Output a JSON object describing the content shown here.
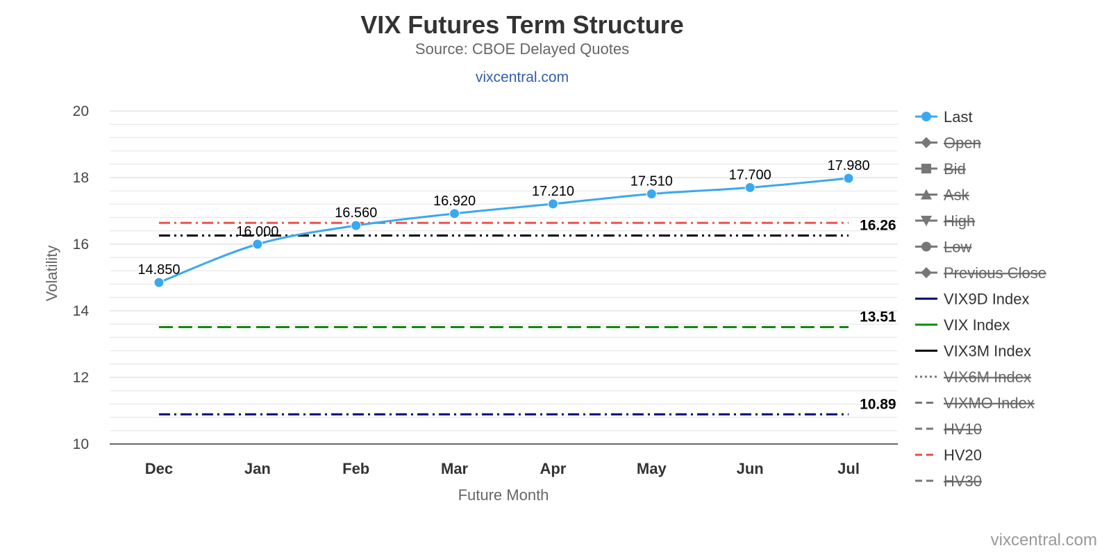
{
  "chart_data": {
    "type": "line",
    "title": "VIX Futures Term Structure",
    "subtitle": "Source: CBOE Delayed Quotes",
    "subtitle_link": "vixcentral.com",
    "xlabel": "Future Month",
    "ylabel": "Volatility",
    "ylim": [
      10,
      20
    ],
    "y_ticks": [
      "10",
      "12",
      "14",
      "16",
      "18",
      "20"
    ],
    "categories": [
      "Dec",
      "Jan",
      "Feb",
      "Mar",
      "Apr",
      "May",
      "Jun",
      "Jul"
    ],
    "series": [
      {
        "name": "Last",
        "values": [
          14.85,
          16.0,
          16.56,
          16.92,
          17.21,
          17.51,
          17.7,
          17.98
        ],
        "labels": [
          "14.850",
          "16.000",
          "16.560",
          "16.920",
          "17.210",
          "17.510",
          "17.700",
          "17.980"
        ],
        "color": "#3aa8f0"
      }
    ],
    "reference_lines": [
      {
        "name": "HV20",
        "value": 16.64,
        "color": "#f0524a",
        "style": "dashdot",
        "label": ""
      },
      {
        "name": "VIX3M Index",
        "value": 16.26,
        "color": "#000000",
        "style": "dashdotdot",
        "label": "16.26"
      },
      {
        "name": "VIX Index",
        "value": 13.51,
        "color": "#118811",
        "style": "longdash",
        "label": "13.51"
      },
      {
        "name": "VIX9D Index",
        "value": 10.89,
        "color": "#000080",
        "style": "dashdot",
        "label": "10.89"
      }
    ],
    "legend": {
      "position": "right",
      "items": [
        {
          "name": "Last",
          "symbol": "circle",
          "color": "#3aa8f0",
          "visible": true
        },
        {
          "name": "Open",
          "symbol": "diamond",
          "color": "#777777",
          "visible": false
        },
        {
          "name": "Bid",
          "symbol": "square",
          "color": "#777777",
          "visible": false
        },
        {
          "name": "Ask",
          "symbol": "triangle",
          "color": "#777777",
          "visible": false
        },
        {
          "name": "High",
          "symbol": "triangle-down",
          "color": "#777777",
          "visible": false
        },
        {
          "name": "Low",
          "symbol": "circle",
          "color": "#777777",
          "visible": false
        },
        {
          "name": "Previous Close",
          "symbol": "diamond",
          "color": "#777777",
          "visible": false
        },
        {
          "name": "VIX9D Index",
          "symbol": "line",
          "color": "#000080",
          "visible": true
        },
        {
          "name": "VIX Index",
          "symbol": "line",
          "color": "#118811",
          "visible": true
        },
        {
          "name": "VIX3M Index",
          "symbol": "line",
          "color": "#000000",
          "visible": true
        },
        {
          "name": "VIX6M Index",
          "symbol": "dotted",
          "color": "#777777",
          "visible": false
        },
        {
          "name": "VIXMO Index",
          "symbol": "dash",
          "color": "#777777",
          "visible": false
        },
        {
          "name": "HV10",
          "symbol": "dash",
          "color": "#777777",
          "visible": false
        },
        {
          "name": "HV20",
          "symbol": "dash",
          "color": "#f0524a",
          "visible": true
        },
        {
          "name": "HV30",
          "symbol": "dash",
          "color": "#777777",
          "visible": false
        }
      ]
    },
    "credit": "vixcentral.com"
  }
}
